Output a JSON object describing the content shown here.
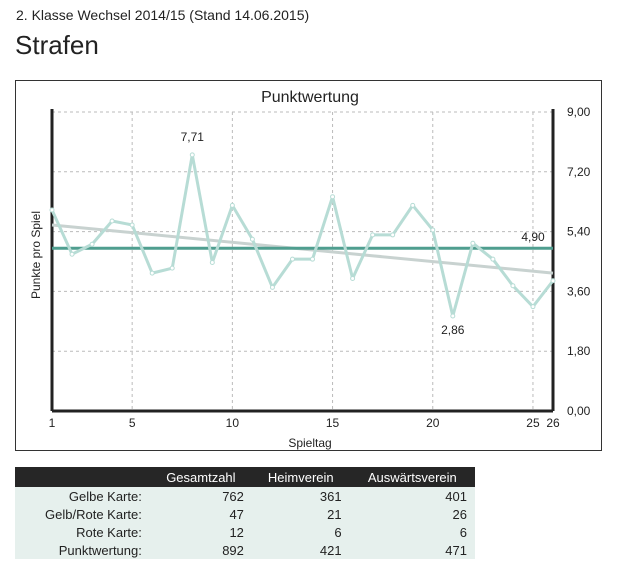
{
  "header": {
    "subtitle": "2. Klasse Wechsel 2014/15 (Stand 14.06.2015)",
    "title": "Strafen"
  },
  "chart_data": {
    "type": "line",
    "title": "Punktwertung",
    "xlabel": "Spieltag",
    "ylabel": "Punkte pro Spiel",
    "x": [
      1,
      2,
      3,
      4,
      5,
      6,
      7,
      8,
      9,
      10,
      11,
      12,
      13,
      14,
      15,
      16,
      17,
      18,
      19,
      20,
      21,
      22,
      23,
      24,
      25,
      26
    ],
    "xticks": [
      "1",
      "5",
      "10",
      "15",
      "20",
      "25",
      "26"
    ],
    "xtick_values": [
      1,
      5,
      10,
      15,
      20,
      25,
      26
    ],
    "yticks": [
      "0,00",
      "1,80",
      "3,60",
      "5,40",
      "7,20",
      "9,00"
    ],
    "ytick_values": [
      0,
      1.8,
      3.6,
      5.4,
      7.2,
      9
    ],
    "ylim": [
      0,
      9
    ],
    "xlim": [
      1,
      26
    ],
    "grid": true,
    "y_axis_side": "right",
    "series": [
      {
        "values": [
          6.05,
          4.72,
          5.02,
          5.72,
          5.6,
          4.15,
          4.3,
          7.71,
          4.47,
          6.19,
          5.17,
          3.72,
          4.57,
          4.57,
          6.45,
          3.99,
          5.3,
          5.3,
          6.19,
          5.45,
          2.86,
          5.05,
          4.57,
          3.77,
          3.14,
          3.92
        ],
        "color": "#b7dcd5"
      }
    ],
    "average": {
      "value": 4.9,
      "label": "4,90",
      "color": "#4f9e8f"
    },
    "trend": {
      "start": 5.6,
      "end": 4.15,
      "color": "#c8d2d0"
    },
    "annotations": [
      {
        "x": 8,
        "y": 7.71,
        "label": "7,71"
      },
      {
        "x": 21,
        "y": 2.86,
        "label": "2,86"
      }
    ]
  },
  "table": {
    "headers": [
      "",
      "Gesamtzahl",
      "Heimverein",
      "Auswärtsverein"
    ],
    "rows": [
      [
        "Gelbe Karte:",
        "762",
        "361",
        "401"
      ],
      [
        "Gelb/Rote Karte:",
        "47",
        "21",
        "26"
      ],
      [
        "Rote Karte:",
        "12",
        "6",
        "6"
      ],
      [
        "Punktwertung:",
        "892",
        "421",
        "471"
      ]
    ]
  }
}
